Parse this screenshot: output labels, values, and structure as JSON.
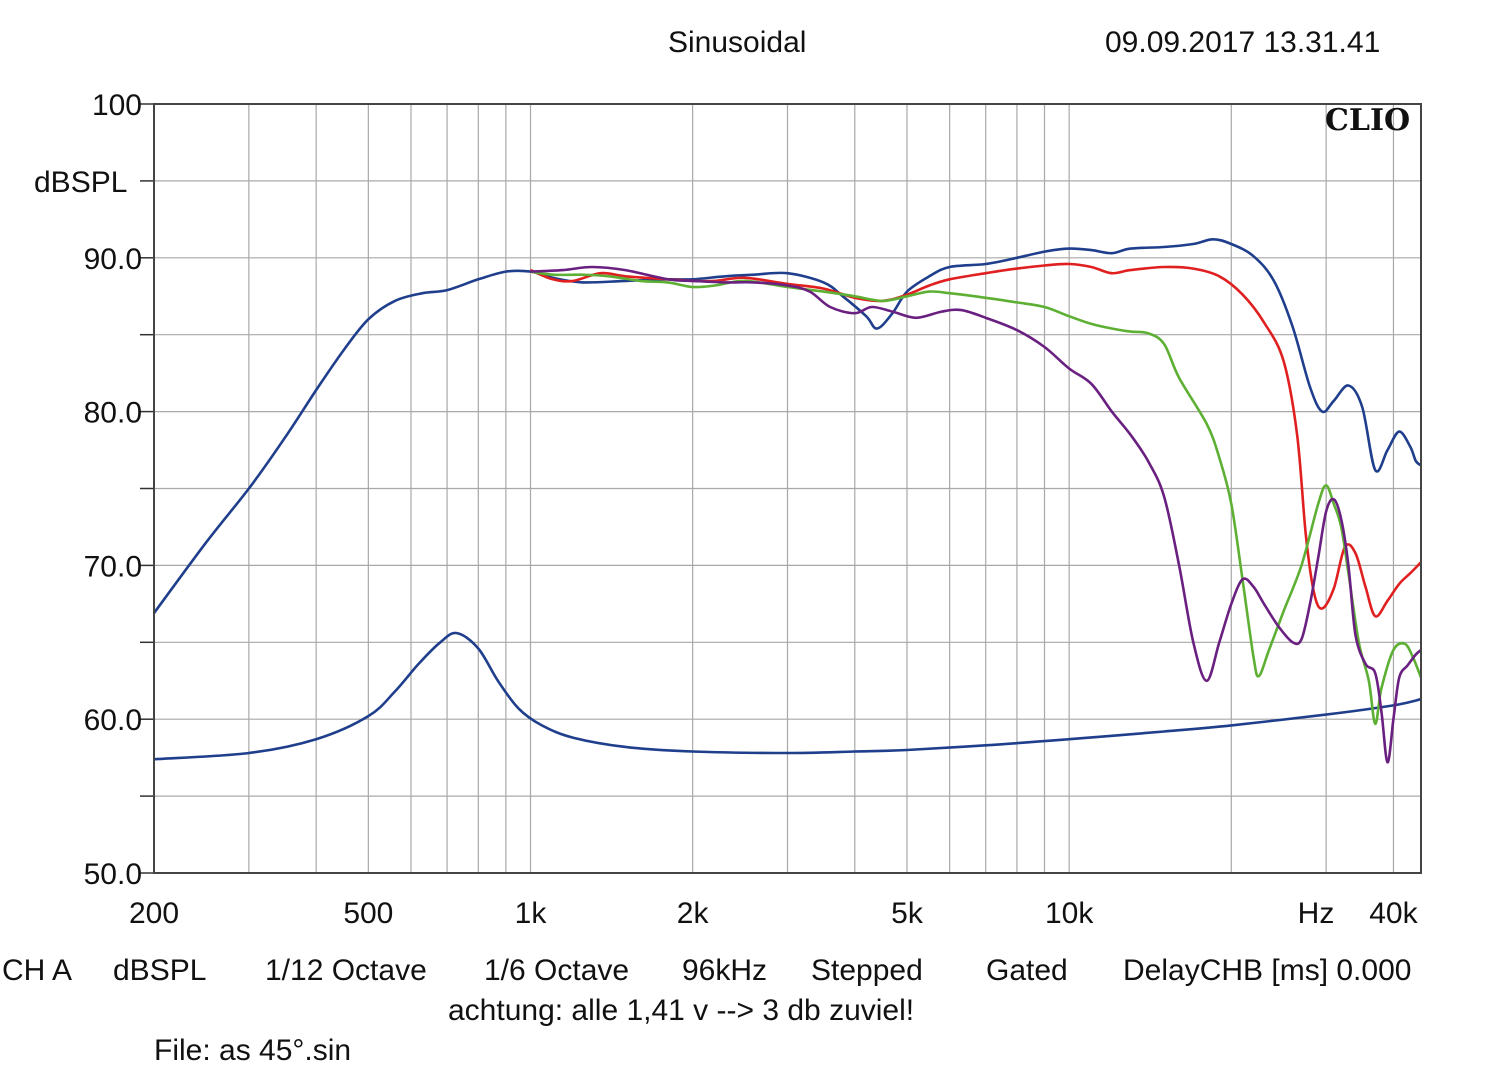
{
  "header": {
    "mode": "Sinusoidal",
    "datetime": "09.09.2017 13.31.41"
  },
  "brand": "CLIO",
  "footer": {
    "channel": "CH A",
    "unit": "dBSPL",
    "resolution": "1/12 Octave",
    "smoothing": "1/6 Octave",
    "sample_rate": "96kHz",
    "mode": "Stepped",
    "window": "Gated",
    "delay": "DelayCHB [ms] 0.000",
    "note": "achtung: alle 1,41 v --> 3 db zuviel!",
    "file": "File: as 45°.sin"
  },
  "chart_data": {
    "type": "line",
    "xscale": "log",
    "xlim": [
      200,
      45000
    ],
    "ylim": [
      50,
      100
    ],
    "ylabel": "dBSPL",
    "grid": true,
    "y_ticks": [
      {
        "value": 100,
        "label": "100"
      },
      {
        "value": 90,
        "label": "90.0"
      },
      {
        "value": 80,
        "label": "80.0"
      },
      {
        "value": 70,
        "label": "70.0"
      },
      {
        "value": 60,
        "label": "60.0"
      },
      {
        "value": 50,
        "label": "50.0"
      }
    ],
    "x_ticks": [
      {
        "value": 200,
        "label": "200"
      },
      {
        "value": 500,
        "label": "500"
      },
      {
        "value": 1000,
        "label": "1k"
      },
      {
        "value": 2000,
        "label": "2k"
      },
      {
        "value": 5000,
        "label": "5k"
      },
      {
        "value": 10000,
        "label": "10k"
      },
      {
        "value": 30000,
        "label": "Hz"
      },
      {
        "value": 40000,
        "label": "40k"
      }
    ],
    "series": [
      {
        "color": "#1f3e8c",
        "points": [
          [
            200,
            66.9
          ],
          [
            250,
            71.5
          ],
          [
            300,
            75.0
          ],
          [
            350,
            78.3
          ],
          [
            400,
            81.4
          ],
          [
            450,
            84.0
          ],
          [
            500,
            86.0
          ],
          [
            560,
            87.2
          ],
          [
            630,
            87.7
          ],
          [
            700,
            87.9
          ],
          [
            800,
            88.6
          ],
          [
            900,
            89.1
          ],
          [
            1000,
            89.1
          ],
          [
            1100,
            88.7
          ],
          [
            1250,
            88.4
          ],
          [
            1500,
            88.5
          ],
          [
            1800,
            88.6
          ],
          [
            2000,
            88.6
          ],
          [
            2300,
            88.8
          ],
          [
            2600,
            88.9
          ],
          [
            3000,
            89.0
          ],
          [
            3500,
            88.4
          ],
          [
            3800,
            87.5
          ],
          [
            4200,
            86.2
          ],
          [
            4400,
            85.4
          ],
          [
            4700,
            86.4
          ],
          [
            5000,
            87.8
          ],
          [
            5500,
            88.8
          ],
          [
            6000,
            89.4
          ],
          [
            7000,
            89.6
          ],
          [
            8000,
            90.0
          ],
          [
            9000,
            90.4
          ],
          [
            10000,
            90.6
          ],
          [
            11000,
            90.5
          ],
          [
            12000,
            90.3
          ],
          [
            13000,
            90.6
          ],
          [
            15000,
            90.7
          ],
          [
            17000,
            90.9
          ],
          [
            18500,
            91.2
          ],
          [
            20000,
            90.9
          ],
          [
            22000,
            90.1
          ],
          [
            24000,
            88.5
          ],
          [
            26000,
            85.5
          ],
          [
            28000,
            81.6
          ],
          [
            29500,
            80.0
          ],
          [
            31000,
            80.7
          ],
          [
            33000,
            81.7
          ],
          [
            35000,
            80.3
          ],
          [
            37000,
            76.2
          ],
          [
            39000,
            77.5
          ],
          [
            41000,
            78.7
          ],
          [
            43000,
            77.7
          ],
          [
            44000,
            76.8
          ],
          [
            45000,
            76.5
          ]
        ]
      },
      {
        "color": "#1f3e8c",
        "points": [
          [
            200,
            57.4
          ],
          [
            300,
            57.8
          ],
          [
            400,
            58.7
          ],
          [
            500,
            60.2
          ],
          [
            560,
            61.8
          ],
          [
            620,
            63.6
          ],
          [
            680,
            65.0
          ],
          [
            730,
            65.6
          ],
          [
            800,
            64.6
          ],
          [
            870,
            62.5
          ],
          [
            950,
            60.7
          ],
          [
            1050,
            59.6
          ],
          [
            1200,
            58.8
          ],
          [
            1500,
            58.2
          ],
          [
            2000,
            57.9
          ],
          [
            3000,
            57.8
          ],
          [
            4000,
            57.9
          ],
          [
            5000,
            58.0
          ],
          [
            7000,
            58.3
          ],
          [
            10000,
            58.7
          ],
          [
            15000,
            59.2
          ],
          [
            20000,
            59.6
          ],
          [
            30000,
            60.3
          ],
          [
            40000,
            60.9
          ],
          [
            45000,
            61.3
          ]
        ]
      },
      {
        "color": "#e02020",
        "points": [
          [
            1000,
            89.2
          ],
          [
            1100,
            88.6
          ],
          [
            1200,
            88.5
          ],
          [
            1350,
            89.0
          ],
          [
            1500,
            88.8
          ],
          [
            1800,
            88.6
          ],
          [
            2000,
            88.5
          ],
          [
            2200,
            88.5
          ],
          [
            2500,
            88.7
          ],
          [
            3000,
            88.3
          ],
          [
            3500,
            88.0
          ],
          [
            4000,
            87.4
          ],
          [
            4500,
            87.2
          ],
          [
            5000,
            87.6
          ],
          [
            5500,
            88.2
          ],
          [
            6000,
            88.6
          ],
          [
            7000,
            89.0
          ],
          [
            8000,
            89.3
          ],
          [
            9000,
            89.5
          ],
          [
            10000,
            89.6
          ],
          [
            11000,
            89.4
          ],
          [
            12000,
            89.0
          ],
          [
            13000,
            89.2
          ],
          [
            15000,
            89.4
          ],
          [
            17000,
            89.3
          ],
          [
            19000,
            88.8
          ],
          [
            21000,
            87.6
          ],
          [
            23000,
            85.8
          ],
          [
            25000,
            83.3
          ],
          [
            26500,
            78.5
          ],
          [
            27500,
            72.0
          ],
          [
            28500,
            68.2
          ],
          [
            29500,
            67.2
          ],
          [
            31000,
            68.5
          ],
          [
            32500,
            71.2
          ],
          [
            34000,
            70.8
          ],
          [
            35500,
            68.6
          ],
          [
            37000,
            66.7
          ],
          [
            39000,
            67.7
          ],
          [
            41000,
            68.8
          ],
          [
            43000,
            69.5
          ],
          [
            45000,
            70.2
          ]
        ]
      },
      {
        "color": "#5db034",
        "points": [
          [
            1000,
            89.1
          ],
          [
            1100,
            88.9
          ],
          [
            1250,
            88.9
          ],
          [
            1400,
            88.8
          ],
          [
            1600,
            88.5
          ],
          [
            1800,
            88.4
          ],
          [
            2000,
            88.1
          ],
          [
            2200,
            88.2
          ],
          [
            2500,
            88.5
          ],
          [
            3000,
            88.1
          ],
          [
            3500,
            87.8
          ],
          [
            4000,
            87.5
          ],
          [
            4500,
            87.2
          ],
          [
            5000,
            87.5
          ],
          [
            5500,
            87.8
          ],
          [
            6000,
            87.7
          ],
          [
            7000,
            87.4
          ],
          [
            8000,
            87.1
          ],
          [
            9000,
            86.8
          ],
          [
            10000,
            86.2
          ],
          [
            11000,
            85.7
          ],
          [
            12000,
            85.4
          ],
          [
            13000,
            85.2
          ],
          [
            14000,
            85.1
          ],
          [
            15000,
            84.4
          ],
          [
            16000,
            82.2
          ],
          [
            18000,
            79.2
          ],
          [
            19000,
            77.0
          ],
          [
            20000,
            74.0
          ],
          [
            21000,
            69.0
          ],
          [
            22000,
            64.0
          ],
          [
            22500,
            62.8
          ],
          [
            23500,
            64.5
          ],
          [
            25000,
            67.0
          ],
          [
            27000,
            70.0
          ],
          [
            29000,
            74.0
          ],
          [
            30000,
            75.2
          ],
          [
            31000,
            74.0
          ],
          [
            32000,
            72.5
          ],
          [
            33000,
            69.5
          ],
          [
            34500,
            65.0
          ],
          [
            36000,
            62.5
          ],
          [
            37000,
            59.7
          ],
          [
            38000,
            62.0
          ],
          [
            40000,
            64.5
          ],
          [
            42000,
            64.9
          ],
          [
            43500,
            64.0
          ],
          [
            45000,
            62.7
          ]
        ]
      },
      {
        "color": "#6a2080",
        "points": [
          [
            1000,
            89.1
          ],
          [
            1150,
            89.2
          ],
          [
            1300,
            89.4
          ],
          [
            1500,
            89.2
          ],
          [
            1800,
            88.6
          ],
          [
            2000,
            88.5
          ],
          [
            2300,
            88.4
          ],
          [
            2600,
            88.4
          ],
          [
            3000,
            88.2
          ],
          [
            3300,
            87.8
          ],
          [
            3600,
            86.8
          ],
          [
            4000,
            86.4
          ],
          [
            4300,
            86.8
          ],
          [
            4700,
            86.5
          ],
          [
            5200,
            86.1
          ],
          [
            5800,
            86.5
          ],
          [
            6300,
            86.6
          ],
          [
            7000,
            86.1
          ],
          [
            8000,
            85.3
          ],
          [
            9000,
            84.2
          ],
          [
            10000,
            82.8
          ],
          [
            11000,
            81.8
          ],
          [
            12000,
            80.0
          ],
          [
            13000,
            78.5
          ],
          [
            14000,
            76.8
          ],
          [
            15000,
            74.5
          ],
          [
            16000,
            70.0
          ],
          [
            17000,
            65.0
          ],
          [
            18000,
            62.5
          ],
          [
            19000,
            65.0
          ],
          [
            20000,
            67.5
          ],
          [
            21000,
            69.1
          ],
          [
            22000,
            68.6
          ],
          [
            23000,
            67.5
          ],
          [
            24500,
            66.0
          ],
          [
            26000,
            65.0
          ],
          [
            27000,
            65.2
          ],
          [
            28000,
            67.5
          ],
          [
            29000,
            70.5
          ],
          [
            30000,
            73.5
          ],
          [
            31000,
            74.3
          ],
          [
            32000,
            73.0
          ],
          [
            33000,
            70.0
          ],
          [
            34000,
            65.5
          ],
          [
            35500,
            63.6
          ],
          [
            37000,
            63.0
          ],
          [
            38000,
            60.5
          ],
          [
            39000,
            57.2
          ],
          [
            40000,
            60.0
          ],
          [
            41000,
            62.7
          ],
          [
            42500,
            63.5
          ],
          [
            44000,
            64.2
          ],
          [
            45000,
            64.5
          ]
        ]
      }
    ]
  }
}
